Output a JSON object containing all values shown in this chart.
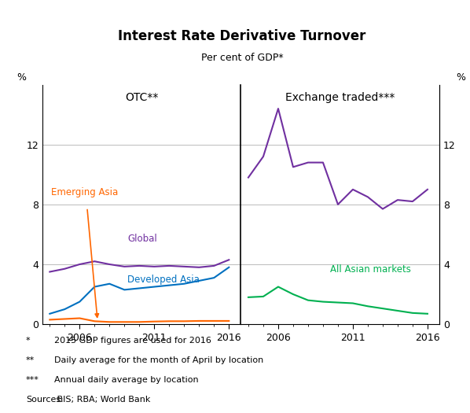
{
  "title": "Interest Rate Derivative Turnover",
  "subtitle": "Per cent of GDP*",
  "left_panel_label": "OTC**",
  "right_panel_label": "Exchange traded***",
  "ylim": [
    0,
    16
  ],
  "yticks": [
    0,
    4,
    8,
    12
  ],
  "ylabel_left": "%",
  "ylabel_right": "%",
  "global_x": [
    2004,
    2005,
    2006,
    2007,
    2008,
    2009,
    2010,
    2011,
    2012,
    2013,
    2014,
    2015,
    2016
  ],
  "global_y": [
    3.5,
    3.7,
    4.0,
    4.2,
    4.0,
    3.85,
    3.9,
    3.85,
    3.9,
    3.85,
    3.8,
    3.9,
    4.3
  ],
  "global_color": "#7030A0",
  "global_label": "Global",
  "developed_asia_x": [
    2004,
    2005,
    2006,
    2007,
    2008,
    2009,
    2010,
    2011,
    2012,
    2013,
    2014,
    2015,
    2016
  ],
  "developed_asia_y": [
    0.7,
    1.0,
    1.5,
    2.5,
    2.7,
    2.3,
    2.4,
    2.5,
    2.6,
    2.7,
    2.9,
    3.1,
    3.8
  ],
  "developed_asia_color": "#0070C0",
  "developed_asia_label": "Developed Asia",
  "emerging_asia_x": [
    2004,
    2005,
    2006,
    2007,
    2008,
    2009,
    2010,
    2011,
    2012,
    2013,
    2014,
    2015,
    2016
  ],
  "emerging_asia_y": [
    0.3,
    0.35,
    0.4,
    0.2,
    0.15,
    0.15,
    0.15,
    0.18,
    0.2,
    0.2,
    0.22,
    0.22,
    0.22
  ],
  "emerging_asia_color": "#FF6600",
  "emerging_asia_label": "Emerging Asia",
  "exchange_all_asian_x": [
    2004,
    2005,
    2006,
    2007,
    2008,
    2009,
    2010,
    2011,
    2012,
    2013,
    2014,
    2015,
    2016
  ],
  "exchange_all_asian_y": [
    1.8,
    1.85,
    2.5,
    2.0,
    1.6,
    1.5,
    1.45,
    1.4,
    1.2,
    1.05,
    0.9,
    0.75,
    0.7
  ],
  "exchange_all_asian_color": "#00B050",
  "exchange_all_asian_label": "All Asian markets",
  "exchange_global_x": [
    2004,
    2005,
    2006,
    2007,
    2008,
    2009,
    2010,
    2011,
    2012,
    2013,
    2014,
    2015,
    2016
  ],
  "exchange_global_y": [
    9.8,
    11.2,
    14.4,
    10.5,
    10.8,
    10.8,
    8.0,
    9.0,
    8.5,
    7.7,
    8.3,
    8.2,
    9.0
  ],
  "exchange_global_color": "#7030A0",
  "background_color": "#FFFFFF",
  "grid_color": "#BBBBBB",
  "footnotes": [
    [
      "*",
      "2015 GDP figures are used for 2016"
    ],
    [
      "**",
      "Daily average for the month of April by location"
    ],
    [
      "***",
      "Annual daily average by location"
    ],
    [
      "Sources:",
      " BIS; RBA; World Bank"
    ]
  ]
}
